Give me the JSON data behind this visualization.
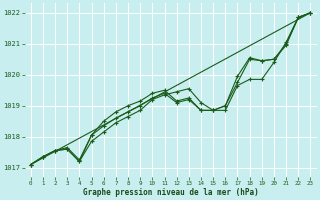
{
  "bg_color": "#c8eef0",
  "grid_color": "#aadddd",
  "line_color": "#1a5c1a",
  "xlabel": "Graphe pression niveau de la mer (hPa)",
  "xlabel_color": "#1a4a1a",
  "xlim": [
    -0.5,
    23.5
  ],
  "ylim": [
    1016.7,
    1022.3
  ],
  "yticks": [
    1017,
    1018,
    1019,
    1020,
    1021,
    1022
  ],
  "xticks": [
    0,
    1,
    2,
    3,
    4,
    5,
    6,
    7,
    8,
    9,
    10,
    11,
    12,
    13,
    14,
    15,
    16,
    17,
    18,
    19,
    20,
    21,
    22,
    23
  ],
  "line1_x": [
    0,
    1,
    2,
    3,
    4,
    5,
    6,
    7,
    8,
    9,
    10,
    11,
    12,
    13,
    14,
    15,
    16,
    17,
    18,
    19,
    20,
    21,
    22,
    23
  ],
  "line1_y": [
    1017.1,
    1017.35,
    1017.55,
    1017.6,
    1017.2,
    1017.85,
    1018.15,
    1018.45,
    1018.65,
    1018.85,
    1019.2,
    1019.35,
    1019.45,
    1019.55,
    1019.1,
    1018.85,
    1018.85,
    1019.65,
    1019.85,
    1019.85,
    1020.4,
    1021.05,
    1021.85,
    1022.0
  ],
  "line2_x": [
    0,
    1,
    2,
    3,
    4,
    5,
    6,
    7,
    8,
    9,
    10,
    11,
    12,
    13,
    14,
    15,
    16,
    17,
    18,
    19,
    20,
    21,
    22,
    23
  ],
  "line2_y": [
    1017.1,
    1017.35,
    1017.55,
    1017.6,
    1017.2,
    1018.05,
    1018.35,
    1018.6,
    1018.8,
    1019.0,
    1019.25,
    1019.4,
    1019.1,
    1019.2,
    1018.85,
    1018.85,
    1019.0,
    1019.75,
    1020.5,
    1020.45,
    1020.5,
    1020.95,
    1021.85,
    1022.0
  ],
  "line3_x": [
    0,
    23
  ],
  "line3_y": [
    1017.1,
    1022.0
  ],
  "line4_x": [
    0,
    1,
    2,
    3,
    4,
    5,
    6,
    7,
    8,
    9,
    10,
    11,
    12,
    13,
    14,
    15,
    16,
    17,
    18,
    19,
    20,
    21,
    22,
    23
  ],
  "line4_y": [
    1017.1,
    1017.35,
    1017.55,
    1017.65,
    1017.25,
    1018.05,
    1018.5,
    1018.8,
    1019.0,
    1019.15,
    1019.4,
    1019.5,
    1019.15,
    1019.25,
    1018.85,
    1018.85,
    1019.0,
    1019.95,
    1020.55,
    1020.45,
    1020.5,
    1021.0,
    1021.85,
    1022.0
  ]
}
